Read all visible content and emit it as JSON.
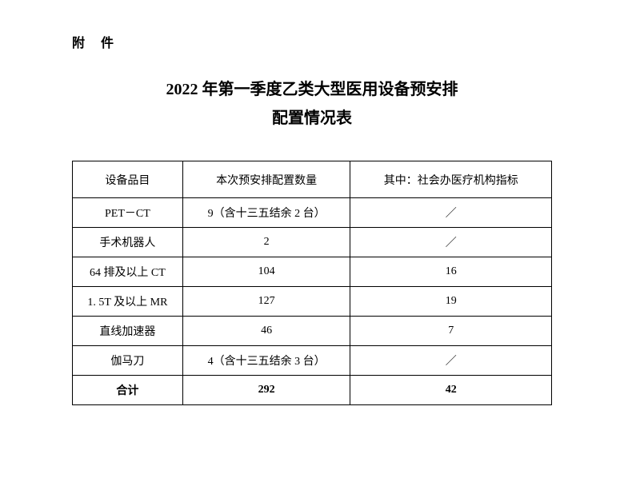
{
  "attachment_label": "附 件",
  "title_line1": "2022 年第一季度乙类大型医用设备预安排",
  "title_line2": "配置情况表",
  "table": {
    "columns": [
      "设备品目",
      "本次预安排配置数量",
      "其中：社会办医疗机构指标"
    ],
    "rows": [
      {
        "c1": "PET－CT",
        "c2": "9（含十三五结余 2 台）",
        "c3": "／"
      },
      {
        "c1": "手术机器人",
        "c2": "2",
        "c3": "／"
      },
      {
        "c1": "64 排及以上 CT",
        "c2": "104",
        "c3": "16"
      },
      {
        "c1": "1. 5T 及以上 MR",
        "c2": "127",
        "c3": "19"
      },
      {
        "c1": "直线加速器",
        "c2": "46",
        "c3": "7"
      },
      {
        "c1": "伽马刀",
        "c2": "4（含十三五结余 3 台）",
        "c3": "／"
      }
    ],
    "total": {
      "c1": "合计",
      "c2": "292",
      "c3": "42"
    }
  },
  "styling": {
    "background_color": "#ffffff",
    "text_color": "#000000",
    "border_color": "#000000",
    "font_family": "SimSun",
    "title_fontsize": 20,
    "body_fontsize": 14,
    "col_widths_pct": [
      23,
      35,
      42
    ]
  }
}
